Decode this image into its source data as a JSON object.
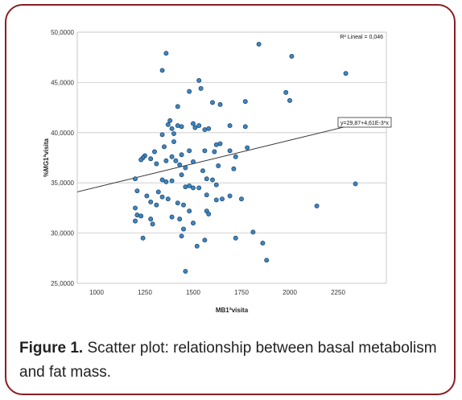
{
  "chart_data": {
    "type": "scatter",
    "title": "",
    "xlabel": "MB1ªvisita",
    "ylabel": "%MG1ªvisita",
    "xlim": [
      900,
      2500
    ],
    "ylim": [
      25000,
      50000
    ],
    "x_ticks": [
      "1000",
      "1250",
      "1500",
      "1750",
      "2000",
      "2250"
    ],
    "x_tick_values": [
      1000,
      1250,
      1500,
      1750,
      2000,
      2250
    ],
    "y_ticks": [
      "25,0000",
      "30,0000",
      "35,0000",
      "40,0000",
      "45,0000",
      "50,0000"
    ],
    "y_tick_values": [
      25000,
      30000,
      35000,
      40000,
      45000,
      50000
    ],
    "grid": "horizontal",
    "r2_label": "R² Lineal = 0,046",
    "fit_label": "y=29,87+4,61E-3*x",
    "fit_line": {
      "x": [
        900,
        2290
      ],
      "y": [
        34100,
        40600
      ]
    },
    "point_color": "#3d86c2",
    "points": [
      [
        1360,
        47900
      ],
      [
        1340,
        46200
      ],
      [
        1840,
        48800
      ],
      [
        2010,
        47600
      ],
      [
        2290,
        45900
      ],
      [
        1530,
        45200
      ],
      [
        1540,
        44400
      ],
      [
        1480,
        44100
      ],
      [
        1980,
        44000
      ],
      [
        2000,
        43200
      ],
      [
        1770,
        43100
      ],
      [
        1640,
        42800
      ],
      [
        1600,
        43000
      ],
      [
        1420,
        42600
      ],
      [
        1370,
        40800
      ],
      [
        1380,
        41200
      ],
      [
        1390,
        40400
      ],
      [
        1400,
        39900
      ],
      [
        1420,
        40700
      ],
      [
        1440,
        40600
      ],
      [
        1500,
        40900
      ],
      [
        1510,
        40500
      ],
      [
        1530,
        40700
      ],
      [
        1560,
        40300
      ],
      [
        1580,
        40400
      ],
      [
        1690,
        40700
      ],
      [
        1770,
        40600
      ],
      [
        1340,
        39800
      ],
      [
        1300,
        38100
      ],
      [
        1350,
        38600
      ],
      [
        1400,
        39100
      ],
      [
        1440,
        37800
      ],
      [
        1480,
        38200
      ],
      [
        1390,
        37600
      ],
      [
        1410,
        37200
      ],
      [
        1430,
        36800
      ],
      [
        1360,
        37200
      ],
      [
        1310,
        36900
      ],
      [
        1280,
        37400
      ],
      [
        1250,
        37700
      ],
      [
        1240,
        37500
      ],
      [
        1230,
        37300
      ],
      [
        1460,
        36500
      ],
      [
        1500,
        37100
      ],
      [
        1620,
        38800
      ],
      [
        1640,
        38900
      ],
      [
        1690,
        38200
      ],
      [
        1720,
        37600
      ],
      [
        1780,
        38500
      ],
      [
        1610,
        38100
      ],
      [
        1560,
        38200
      ],
      [
        1630,
        36700
      ],
      [
        1710,
        36400
      ],
      [
        1200,
        35400
      ],
      [
        1340,
        35300
      ],
      [
        1360,
        35100
      ],
      [
        1390,
        35200
      ],
      [
        1440,
        35800
      ],
      [
        1460,
        34600
      ],
      [
        1480,
        34700
      ],
      [
        1500,
        34500
      ],
      [
        1530,
        34500
      ],
      [
        1550,
        36200
      ],
      [
        1570,
        35400
      ],
      [
        1600,
        35300
      ],
      [
        1620,
        34800
      ],
      [
        1210,
        34200
      ],
      [
        1260,
        33700
      ],
      [
        1280,
        33100
      ],
      [
        1320,
        34100
      ],
      [
        1340,
        33600
      ],
      [
        1370,
        33400
      ],
      [
        1420,
        33000
      ],
      [
        1450,
        32800
      ],
      [
        1480,
        32200
      ],
      [
        1570,
        33800
      ],
      [
        1620,
        33300
      ],
      [
        1650,
        33400
      ],
      [
        1690,
        33700
      ],
      [
        1750,
        33400
      ],
      [
        2340,
        34900
      ],
      [
        2140,
        32700
      ],
      [
        1200,
        32500
      ],
      [
        1210,
        31800
      ],
      [
        1230,
        31700
      ],
      [
        1200,
        31200
      ],
      [
        1280,
        31400
      ],
      [
        1290,
        30900
      ],
      [
        1390,
        31600
      ],
      [
        1430,
        31400
      ],
      [
        1450,
        30400
      ],
      [
        1570,
        32200
      ],
      [
        1580,
        31900
      ],
      [
        1240,
        29500
      ],
      [
        1440,
        29700
      ],
      [
        1520,
        28700
      ],
      [
        1560,
        29300
      ],
      [
        1720,
        29500
      ],
      [
        1810,
        30100
      ],
      [
        1860,
        29000
      ],
      [
        1880,
        27300
      ],
      [
        1460,
        26200
      ],
      [
        1500,
        31000
      ],
      [
        1310,
        32800
      ]
    ]
  },
  "caption": {
    "label": "Figure 1.",
    "text": " Scatter plot: relationship between basal metabolism and fat mass."
  }
}
